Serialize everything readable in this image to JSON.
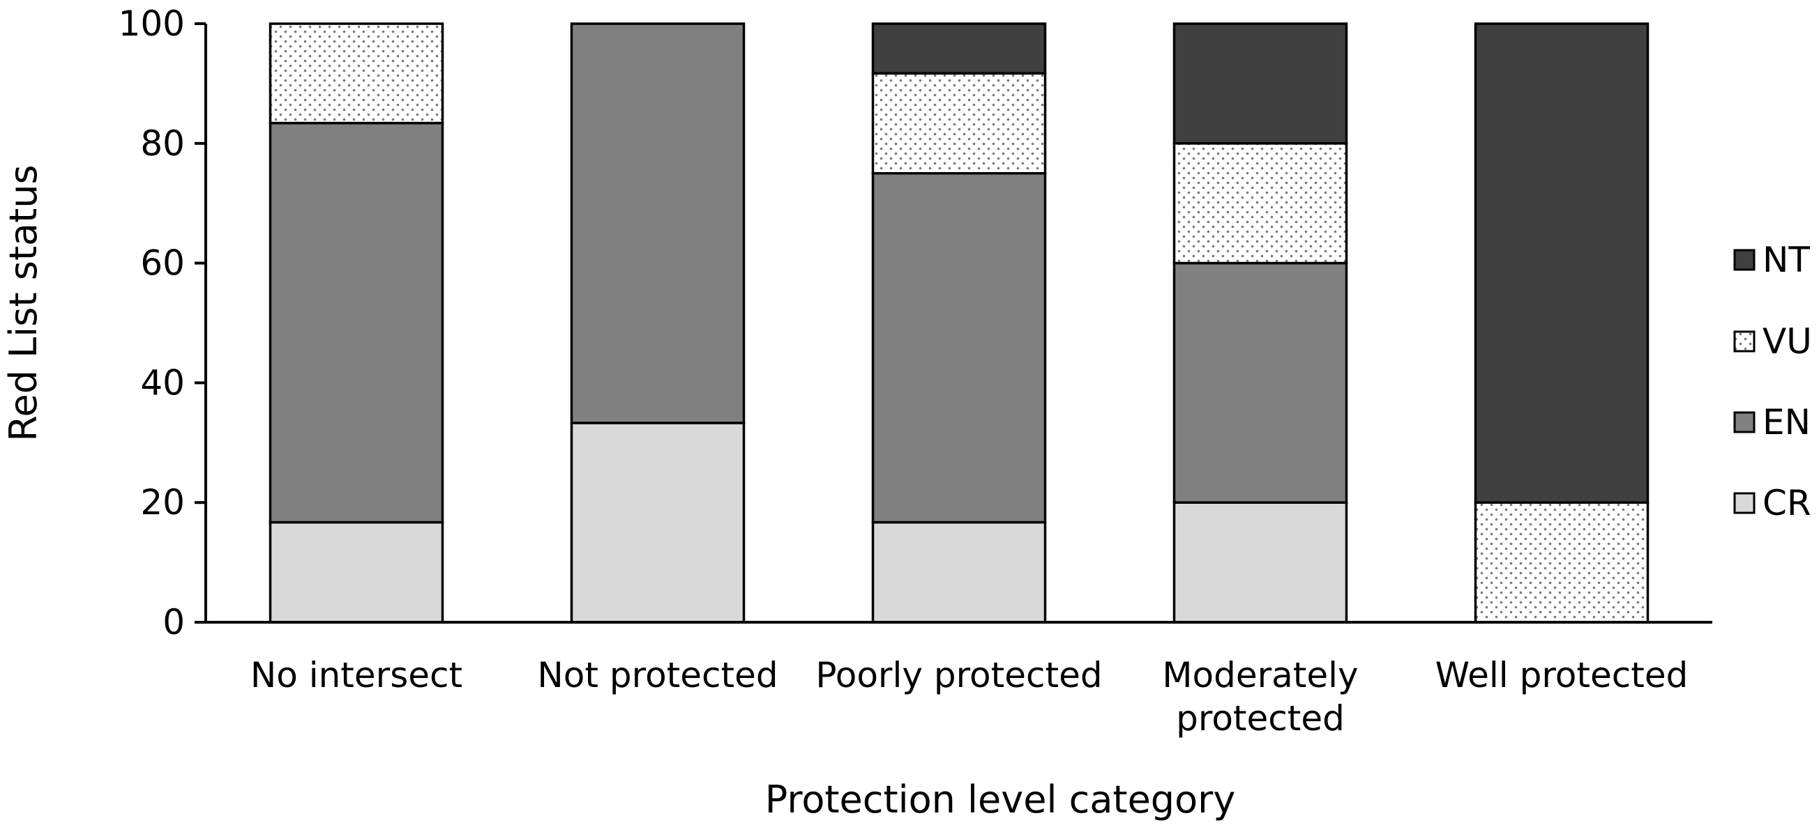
{
  "chart_data": {
    "type": "bar",
    "stacked": true,
    "title": "",
    "xlabel": "Protection level category",
    "ylabel": "Red List status",
    "ylim": [
      0,
      100
    ],
    "yticks": [
      0,
      20,
      40,
      60,
      80,
      100
    ],
    "grid": false,
    "legend_position": "right",
    "categories": [
      [
        "No intersect"
      ],
      [
        "Not protected"
      ],
      [
        "Poorly protected"
      ],
      [
        "Moderately",
        "protected"
      ],
      [
        "Well protected"
      ]
    ],
    "series": [
      {
        "name": "CR",
        "values": [
          16.7,
          33.3,
          16.7,
          20,
          0
        ],
        "fill": "#d9d9d9",
        "pattern": "none"
      },
      {
        "name": "EN",
        "values": [
          66.7,
          66.7,
          58.3,
          40,
          0
        ],
        "fill": "#808080",
        "pattern": "none"
      },
      {
        "name": "VU",
        "values": [
          16.6,
          0,
          16.7,
          20,
          20
        ],
        "fill": "#ffffff",
        "pattern": "dots"
      },
      {
        "name": "NT",
        "values": [
          0,
          0,
          8.3,
          20,
          80
        ],
        "fill": "#404040",
        "pattern": "none"
      }
    ],
    "legend_order": [
      "NT",
      "VU",
      "EN",
      "CR"
    ]
  }
}
